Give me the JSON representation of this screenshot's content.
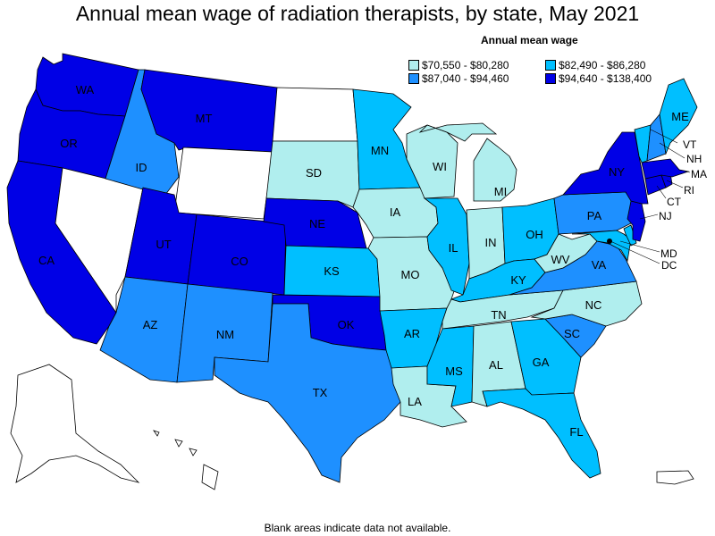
{
  "title": "Annual mean wage of radiation therapists, by state, May 2021",
  "legend": {
    "title": "Annual mean wage",
    "items": [
      {
        "label": "$70,550 - $80,280",
        "color": "#b0eeee"
      },
      {
        "label": "$82,490 - $86,280",
        "color": "#00bfff"
      },
      {
        "label": "$87,040 - $94,460",
        "color": "#1e90ff"
      },
      {
        "label": "$94,640 - $138,400",
        "color": "#0000e6"
      }
    ]
  },
  "footnote": "Blank areas indicate data not available.",
  "nodata_color": "#ffffff",
  "states": {
    "WA": {
      "label": "WA",
      "bin": 3
    },
    "OR": {
      "label": "OR",
      "bin": 3
    },
    "CA": {
      "label": "CA",
      "bin": 3
    },
    "NV": {
      "label": "",
      "bin": null
    },
    "ID": {
      "label": "ID",
      "bin": 2
    },
    "MT": {
      "label": "MT",
      "bin": 3
    },
    "WY": {
      "label": "",
      "bin": null
    },
    "UT": {
      "label": "UT",
      "bin": 3
    },
    "CO": {
      "label": "CO",
      "bin": 3
    },
    "AZ": {
      "label": "AZ",
      "bin": 2
    },
    "NM": {
      "label": "NM",
      "bin": 2
    },
    "ND": {
      "label": "",
      "bin": null
    },
    "SD": {
      "label": "SD",
      "bin": 0
    },
    "NE": {
      "label": "NE",
      "bin": 3
    },
    "KS": {
      "label": "KS",
      "bin": 1
    },
    "OK": {
      "label": "OK",
      "bin": 3
    },
    "TX": {
      "label": "TX",
      "bin": 2
    },
    "MN": {
      "label": "MN",
      "bin": 1
    },
    "IA": {
      "label": "IA",
      "bin": 0
    },
    "MO": {
      "label": "MO",
      "bin": 0
    },
    "AR": {
      "label": "AR",
      "bin": 1
    },
    "LA": {
      "label": "LA",
      "bin": 0
    },
    "WI": {
      "label": "WI",
      "bin": 0
    },
    "IL": {
      "label": "IL",
      "bin": 1
    },
    "MI": {
      "label": "MI",
      "bin": 0
    },
    "IN": {
      "label": "IN",
      "bin": 0
    },
    "OH": {
      "label": "OH",
      "bin": 1
    },
    "KY": {
      "label": "KY",
      "bin": 1
    },
    "TN": {
      "label": "TN",
      "bin": 0
    },
    "MS": {
      "label": "MS",
      "bin": 1
    },
    "AL": {
      "label": "AL",
      "bin": 0
    },
    "GA": {
      "label": "GA",
      "bin": 1
    },
    "FL": {
      "label": "FL",
      "bin": 1
    },
    "SC": {
      "label": "SC",
      "bin": 2
    },
    "NC": {
      "label": "NC",
      "bin": 0
    },
    "VA": {
      "label": "VA",
      "bin": 2
    },
    "WV": {
      "label": "WV",
      "bin": 0
    },
    "PA": {
      "label": "PA",
      "bin": 2
    },
    "NY": {
      "label": "NY",
      "bin": 3
    },
    "NJ": {
      "label": "NJ",
      "bin": 3
    },
    "DE": {
      "label": "",
      "bin": 1
    },
    "MD": {
      "label": "MD",
      "bin": 1
    },
    "DC": {
      "label": "DC",
      "bin": 3
    },
    "CT": {
      "label": "CT",
      "bin": 3
    },
    "RI": {
      "label": "RI",
      "bin": 3
    },
    "MA": {
      "label": "MA",
      "bin": 3
    },
    "VT": {
      "label": "VT",
      "bin": 1
    },
    "NH": {
      "label": "NH",
      "bin": 2
    },
    "ME": {
      "label": "ME",
      "bin": 1
    },
    "AK": {
      "label": "",
      "bin": null
    },
    "HI": {
      "label": "",
      "bin": null
    },
    "PR": {
      "label": "",
      "bin": null
    }
  }
}
